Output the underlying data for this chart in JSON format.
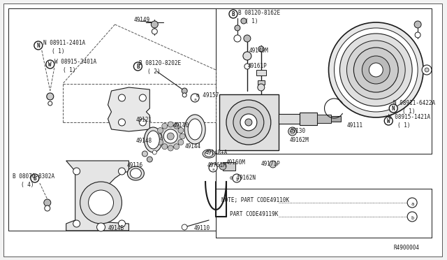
{
  "bg_color": "#f2f2f2",
  "diagram_bg": "#ffffff",
  "line_color": "#1a1a1a",
  "text_color": "#1a1a1a",
  "diagram_id": "R4900004",
  "figsize": [
    6.4,
    3.72
  ],
  "dpi": 100,
  "note_line1": "NOTE; PART CODE49110K",
  "note_line2": "      PART CODE49119K"
}
